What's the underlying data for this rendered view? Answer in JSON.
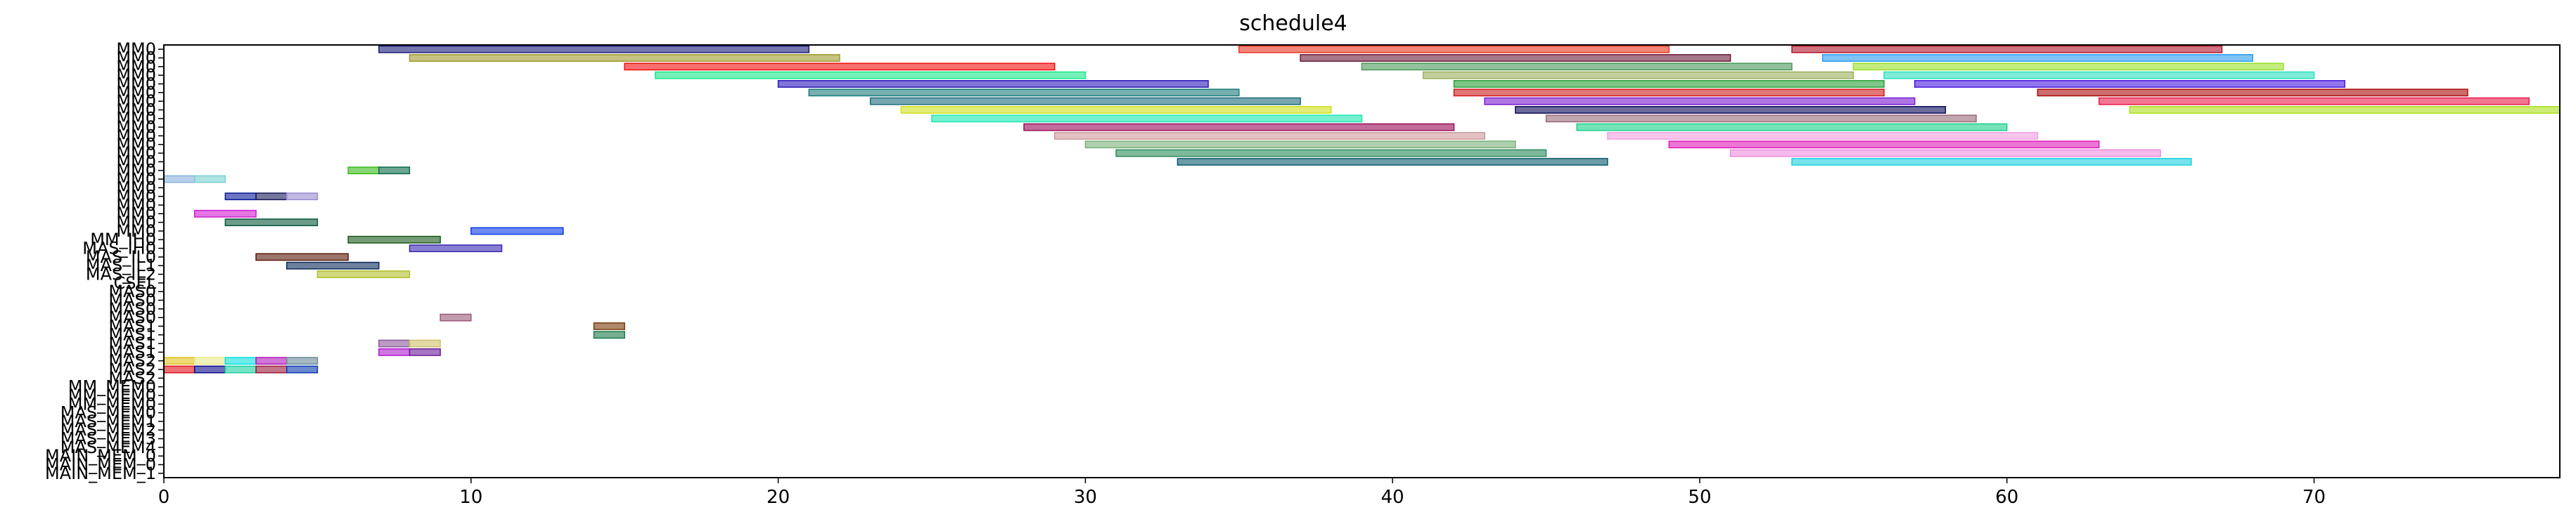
{
  "chart_data": {
    "type": "gantt",
    "title": "schedule4",
    "xlabel": "",
    "ylabel": "",
    "xlim": [
      0,
      78
    ],
    "x_ticks": [
      0,
      10,
      20,
      30,
      40,
      50,
      60,
      70
    ],
    "grid": false,
    "rows": [
      "MM0",
      "MM0",
      "MM0",
      "MM0",
      "MM0",
      "MM0",
      "MM0",
      "MM0",
      "MM0",
      "MM0",
      "MM0",
      "MM0",
      "MM0",
      "MM0",
      "MM0",
      "MM0",
      "MM0",
      "MM0",
      "MM0",
      "MM0",
      "MM0",
      "MM0",
      "MM_IH0",
      "MAS_IH0",
      "MAS_IL0",
      "MAS_IL1",
      "MAS_IL2",
      "CSEL",
      "MAS0",
      "MAS0",
      "MAS0",
      "MAS0",
      "MAS1",
      "MAS1",
      "MAS1",
      "MAS1",
      "MAS2",
      "MAS2",
      "MAS2",
      "MM_MEM0",
      "MM_MEM0",
      "MM_MEM0",
      "MAS_MEM0",
      "MAS_MEM1",
      "MAS_MEM2",
      "MAS_MEM3",
      "MAS_MEM4",
      "MAIN_MEM_0",
      "MAIN_MEM_0",
      "MAIN_MEM_1"
    ],
    "bar_opacity": 0.6,
    "bars": [
      {
        "row": 0,
        "start": 7,
        "end": 21,
        "color": "#1a1a7a"
      },
      {
        "row": 0,
        "start": 35,
        "end": 49,
        "color": "#e8361f"
      },
      {
        "row": 0,
        "start": 53,
        "end": 67,
        "color": "#b0142a"
      },
      {
        "row": 1,
        "start": 8,
        "end": 22,
        "color": "#9f9a2e"
      },
      {
        "row": 1,
        "start": 37,
        "end": 51,
        "color": "#6a1a3a"
      },
      {
        "row": 1,
        "start": 54,
        "end": 68,
        "color": "#2a9cf0"
      },
      {
        "row": 2,
        "start": 15,
        "end": 29,
        "color": "#f20f0f"
      },
      {
        "row": 2,
        "start": 39,
        "end": 53,
        "color": "#4a9a5a"
      },
      {
        "row": 2,
        "start": 55,
        "end": 69,
        "color": "#9ae02a"
      },
      {
        "row": 3,
        "start": 16,
        "end": 30,
        "color": "#1ae88a"
      },
      {
        "row": 3,
        "start": 41,
        "end": 55,
        "color": "#9ab05a"
      },
      {
        "row": 3,
        "start": 56,
        "end": 70,
        "color": "#2ae0c0"
      },
      {
        "row": 4,
        "start": 20,
        "end": 34,
        "color": "#2a1aba"
      },
      {
        "row": 4,
        "start": 42,
        "end": 56,
        "color": "#2aa03a"
      },
      {
        "row": 4,
        "start": 57,
        "end": 71,
        "color": "#4a1ae0"
      },
      {
        "row": 5,
        "start": 21,
        "end": 35,
        "color": "#1a7a7a"
      },
      {
        "row": 5,
        "start": 42,
        "end": 56,
        "color": "#d01a1a"
      },
      {
        "row": 5,
        "start": 61,
        "end": 75,
        "color": "#aa0a0a"
      },
      {
        "row": 6,
        "start": 23,
        "end": 37,
        "color": "#1a6a7a"
      },
      {
        "row": 6,
        "start": 43,
        "end": 57,
        "color": "#7a1ad0"
      },
      {
        "row": 6,
        "start": 63,
        "end": 77,
        "color": "#e81a4a"
      },
      {
        "row": 7,
        "start": 24,
        "end": 38,
        "color": "#d0e01a"
      },
      {
        "row": 7,
        "start": 44,
        "end": 58,
        "color": "#0a0a5a"
      },
      {
        "row": 7,
        "start": 64,
        "end": 78,
        "color": "#aae01a"
      },
      {
        "row": 8,
        "start": 25,
        "end": 39,
        "color": "#1ae8b0"
      },
      {
        "row": 8,
        "start": 45,
        "end": 59,
        "color": "#9a6a7a"
      },
      {
        "row": 9,
        "start": 28,
        "end": 42,
        "color": "#9a0a5a"
      },
      {
        "row": 9,
        "start": 46,
        "end": 60,
        "color": "#1ad08a"
      },
      {
        "row": 10,
        "start": 29,
        "end": 43,
        "color": "#d09a9a"
      },
      {
        "row": 10,
        "start": 47,
        "end": 61,
        "color": "#f0a0e0"
      },
      {
        "row": 11,
        "start": 30,
        "end": 44,
        "color": "#7ab07a"
      },
      {
        "row": 11,
        "start": 49,
        "end": 63,
        "color": "#e01aba"
      },
      {
        "row": 12,
        "start": 31,
        "end": 45,
        "color": "#2a8a5a"
      },
      {
        "row": 12,
        "start": 51,
        "end": 65,
        "color": "#f08ae0"
      },
      {
        "row": 13,
        "start": 33,
        "end": 47,
        "color": "#0a5a6a"
      },
      {
        "row": 13,
        "start": 53,
        "end": 66,
        "color": "#1ad0e0"
      },
      {
        "row": 14,
        "start": 6,
        "end": 7,
        "color": "#3aba1a"
      },
      {
        "row": 14,
        "start": 7,
        "end": 8,
        "color": "#0a6a4a"
      },
      {
        "row": 15,
        "start": 0,
        "end": 1,
        "color": "#8ab0e0"
      },
      {
        "row": 15,
        "start": 1,
        "end": 2,
        "color": "#7ad0d0"
      },
      {
        "row": 17,
        "start": 2,
        "end": 3,
        "color": "#0a1a9a"
      },
      {
        "row": 17,
        "start": 3,
        "end": 4,
        "color": "#1a1a5a"
      },
      {
        "row": 17,
        "start": 4,
        "end": 5,
        "color": "#9a8ad0"
      },
      {
        "row": 19,
        "start": 1,
        "end": 3,
        "color": "#d01ad0"
      },
      {
        "row": 20,
        "start": 2,
        "end": 5,
        "color": "#0a5a3a"
      },
      {
        "row": 21,
        "start": 10,
        "end": 13,
        "color": "#0a3ae8"
      },
      {
        "row": 22,
        "start": 6,
        "end": 9,
        "color": "#1a5a1a"
      },
      {
        "row": 23,
        "start": 8,
        "end": 11,
        "color": "#3a2ab0"
      },
      {
        "row": 24,
        "start": 3,
        "end": 6,
        "color": "#5a1a0a"
      },
      {
        "row": 25,
        "start": 4,
        "end": 7,
        "color": "#0a2a5a"
      },
      {
        "row": 26,
        "start": 5,
        "end": 8,
        "color": "#b0c02a"
      },
      {
        "row": 31,
        "start": 9,
        "end": 10,
        "color": "#9a5a7a"
      },
      {
        "row": 32,
        "start": 14,
        "end": 15,
        "color": "#7a3a0a"
      },
      {
        "row": 33,
        "start": 14,
        "end": 15,
        "color": "#1a7a4a"
      },
      {
        "row": 34,
        "start": 7,
        "end": 8,
        "color": "#8a5a9a"
      },
      {
        "row": 34,
        "start": 8,
        "end": 9,
        "color": "#d0c06a"
      },
      {
        "row": 35,
        "start": 7,
        "end": 8,
        "color": "#b01ad0"
      },
      {
        "row": 35,
        "start": 8,
        "end": 9,
        "color": "#6a1a9a"
      },
      {
        "row": 36,
        "start": 0,
        "end": 1,
        "color": "#e0c01a"
      },
      {
        "row": 36,
        "start": 1,
        "end": 2,
        "color": "#e8e88a"
      },
      {
        "row": 36,
        "start": 2,
        "end": 3,
        "color": "#0ae0e0"
      },
      {
        "row": 36,
        "start": 3,
        "end": 4,
        "color": "#b01aba"
      },
      {
        "row": 36,
        "start": 4,
        "end": 5,
        "color": "#6a8a9a"
      },
      {
        "row": 37,
        "start": 0,
        "end": 1,
        "color": "#e0101a"
      },
      {
        "row": 37,
        "start": 1,
        "end": 2,
        "color": "#0a0a8a"
      },
      {
        "row": 37,
        "start": 2,
        "end": 3,
        "color": "#1ad0a0"
      },
      {
        "row": 37,
        "start": 3,
        "end": 4,
        "color": "#9a1a3a"
      },
      {
        "row": 37,
        "start": 4,
        "end": 5,
        "color": "#0a3ab0"
      }
    ]
  }
}
